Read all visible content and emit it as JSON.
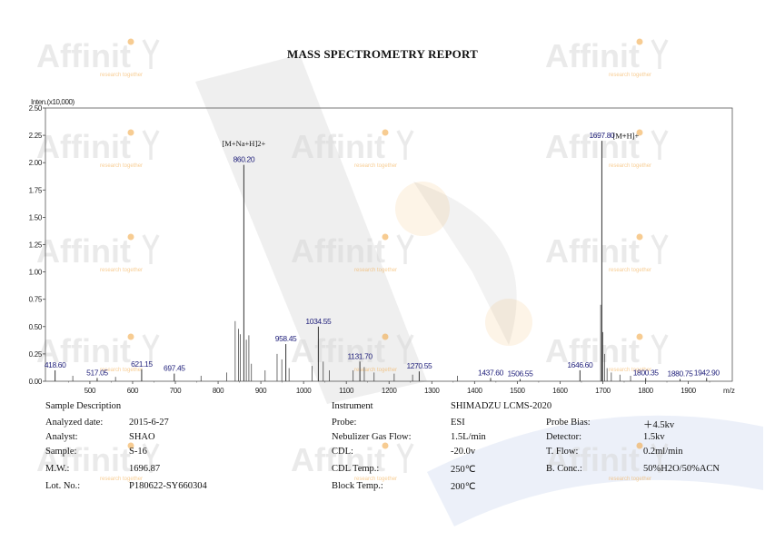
{
  "report": {
    "title": "MASS SPECTROMETRY REPORT",
    "watermark_text": "Affinit",
    "watermark_sub": "research together",
    "watermark_color": "#d9d9d9",
    "accent_color": "#f2a33a"
  },
  "chart_data": {
    "type": "bar",
    "title": "",
    "ylabel": "Inten.(x10,000)",
    "xlabel": "m/z",
    "xlim": [
      396,
      2003
    ],
    "ylim": [
      0,
      2.5
    ],
    "x_ticks": [
      500,
      600,
      700,
      800,
      900,
      1000,
      1100,
      1200,
      1300,
      1400,
      1500,
      1600,
      1700,
      1800,
      1900
    ],
    "x_tick_labels": [
      "500",
      "600",
      "700",
      "800",
      "900",
      "1000",
      "1100",
      "1200",
      "1300",
      "1400",
      "1500",
      "1600",
      "1700",
      "1800",
      "1900"
    ],
    "y_ticks": [
      0,
      0.25,
      0.5,
      0.75,
      1.0,
      1.25,
      1.5,
      1.75,
      2.0,
      2.25,
      2.5
    ],
    "y_tick_labels": [
      "0.00",
      "0.25",
      "0.50",
      "0.75",
      "1.00",
      "1.25",
      "1.50",
      "1.75",
      "2.00",
      "2.25",
      "2.50"
    ],
    "labeled_peaks": [
      {
        "mz": 418.6,
        "intensity": 0.1,
        "label": "418.60"
      },
      {
        "mz": 517.05,
        "intensity": 0.03,
        "label": "517.05"
      },
      {
        "mz": 621.15,
        "intensity": 0.11,
        "label": "621.15"
      },
      {
        "mz": 697.45,
        "intensity": 0.07,
        "label": "697.45"
      },
      {
        "mz": 860.2,
        "intensity": 1.98,
        "label": "860.20"
      },
      {
        "mz": 958.45,
        "intensity": 0.34,
        "label": "958.45"
      },
      {
        "mz": 1034.55,
        "intensity": 0.5,
        "label": "1034.55"
      },
      {
        "mz": 1131.7,
        "intensity": 0.18,
        "label": "1131.70"
      },
      {
        "mz": 1270.55,
        "intensity": 0.09,
        "label": "1270.55"
      },
      {
        "mz": 1437.6,
        "intensity": 0.03,
        "label": "1437.60"
      },
      {
        "mz": 1506.55,
        "intensity": 0.02,
        "label": "1506.55"
      },
      {
        "mz": 1646.6,
        "intensity": 0.1,
        "label": "1646.60"
      },
      {
        "mz": 1697.8,
        "intensity": 2.2,
        "label": "1697.80"
      },
      {
        "mz": 1800.35,
        "intensity": 0.03,
        "label": "1800.35"
      },
      {
        "mz": 1880.75,
        "intensity": 0.02,
        "label": "1880.75"
      },
      {
        "mz": 1942.9,
        "intensity": 0.03,
        "label": "1942.90"
      }
    ],
    "minor_peaks": [
      {
        "mz": 840,
        "intensity": 0.55
      },
      {
        "mz": 848,
        "intensity": 0.48
      },
      {
        "mz": 852,
        "intensity": 0.43
      },
      {
        "mz": 866,
        "intensity": 0.38
      },
      {
        "mz": 872,
        "intensity": 0.42
      },
      {
        "mz": 878,
        "intensity": 0.16
      },
      {
        "mz": 820,
        "intensity": 0.08
      },
      {
        "mz": 910,
        "intensity": 0.1
      },
      {
        "mz": 938,
        "intensity": 0.25
      },
      {
        "mz": 949,
        "intensity": 0.2
      },
      {
        "mz": 966,
        "intensity": 0.12
      },
      {
        "mz": 1020,
        "intensity": 0.14
      },
      {
        "mz": 1046,
        "intensity": 0.18
      },
      {
        "mz": 1060,
        "intensity": 0.1
      },
      {
        "mz": 1116,
        "intensity": 0.1
      },
      {
        "mz": 1142,
        "intensity": 0.13
      },
      {
        "mz": 1165,
        "intensity": 0.08
      },
      {
        "mz": 1212,
        "intensity": 0.07
      },
      {
        "mz": 1255,
        "intensity": 0.06
      },
      {
        "mz": 1360,
        "intensity": 0.05
      },
      {
        "mz": 1695,
        "intensity": 0.7
      },
      {
        "mz": 1700,
        "intensity": 0.45
      },
      {
        "mz": 1704,
        "intensity": 0.25
      },
      {
        "mz": 1710,
        "intensity": 0.12
      },
      {
        "mz": 1720,
        "intensity": 0.08
      },
      {
        "mz": 1740,
        "intensity": 0.06
      },
      {
        "mz": 1765,
        "intensity": 0.05
      },
      {
        "mz": 460,
        "intensity": 0.05
      },
      {
        "mz": 560,
        "intensity": 0.04
      },
      {
        "mz": 760,
        "intensity": 0.05
      }
    ],
    "annotations": [
      {
        "text": "[M+Na+H]2+",
        "mz": 860.2,
        "intensity": 2.15
      },
      {
        "text": "[M+H]+",
        "mz": 1697.8,
        "intensity": 2.22
      }
    ],
    "grid": false,
    "peak_label_color": "#1f1f7a",
    "peak_color": "#333333"
  },
  "sample": {
    "header": "Sample Description",
    "rows": [
      {
        "label": "Analyzed date:",
        "value": "2015-6-27"
      },
      {
        "label": "Analyst:",
        "value": "SHAO"
      },
      {
        "label": "Sample:",
        "value": "S-16"
      },
      {
        "label": "M.W.:",
        "value": "1696.87"
      },
      {
        "label": "Lot. No.:",
        "value": "P180622-SY660304"
      }
    ]
  },
  "instrument": {
    "header": "Instrument",
    "header_value": "SHIMADZU LCMS-2020",
    "rows": [
      {
        "label": "Probe:",
        "value": "ESI"
      },
      {
        "label": "Nebulizer Gas Flow:",
        "value": "1.5L/min"
      },
      {
        "label": "CDL:",
        "value": "-20.0v"
      },
      {
        "label": "CDL Temp.:",
        "value": "250℃"
      },
      {
        "label": "Block Temp.:",
        "value": "200℃"
      }
    ],
    "right_rows": [
      {
        "label": "Probe Bias:",
        "value": "＋4.5kv"
      },
      {
        "label": "Detector:",
        "value": "1.5kv"
      },
      {
        "label": "T. Flow:",
        "value": "0.2ml/min"
      },
      {
        "label": "B. Conc.:",
        "value": "50%H2O/50%ACN"
      }
    ]
  }
}
